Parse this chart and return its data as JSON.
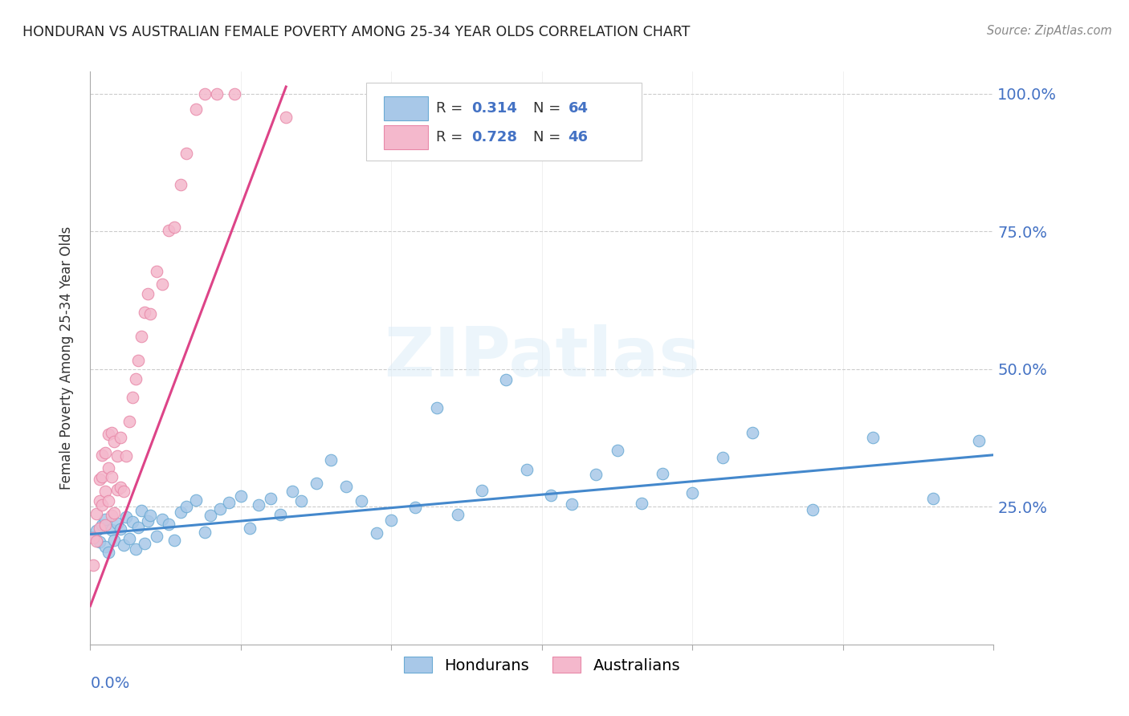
{
  "title": "HONDURAN VS AUSTRALIAN FEMALE POVERTY AMONG 25-34 YEAR OLDS CORRELATION CHART",
  "source": "Source: ZipAtlas.com",
  "ylabel": "Female Poverty Among 25-34 Year Olds",
  "ytick_labels": [
    "",
    "25.0%",
    "50.0%",
    "75.0%",
    "100.0%"
  ],
  "watermark": "ZIPatlas",
  "legend_blue_r": "0.314",
  "legend_blue_n": "64",
  "legend_pink_r": "0.728",
  "legend_pink_n": "46",
  "blue_scatter_color": "#a8c8e8",
  "blue_scatter_edge": "#6aaad4",
  "pink_scatter_color": "#f4b8cc",
  "pink_scatter_edge": "#e888a8",
  "blue_line_color": "#4488cc",
  "pink_line_color": "#dd4488",
  "axis_label_color": "#4472c4",
  "text_color": "#333333",
  "grid_color": "#cccccc",
  "hondurans_label": "Hondurans",
  "australians_label": "Australians",
  "xlim": [
    0.0,
    0.3
  ],
  "ylim": [
    0.0,
    1.04
  ]
}
